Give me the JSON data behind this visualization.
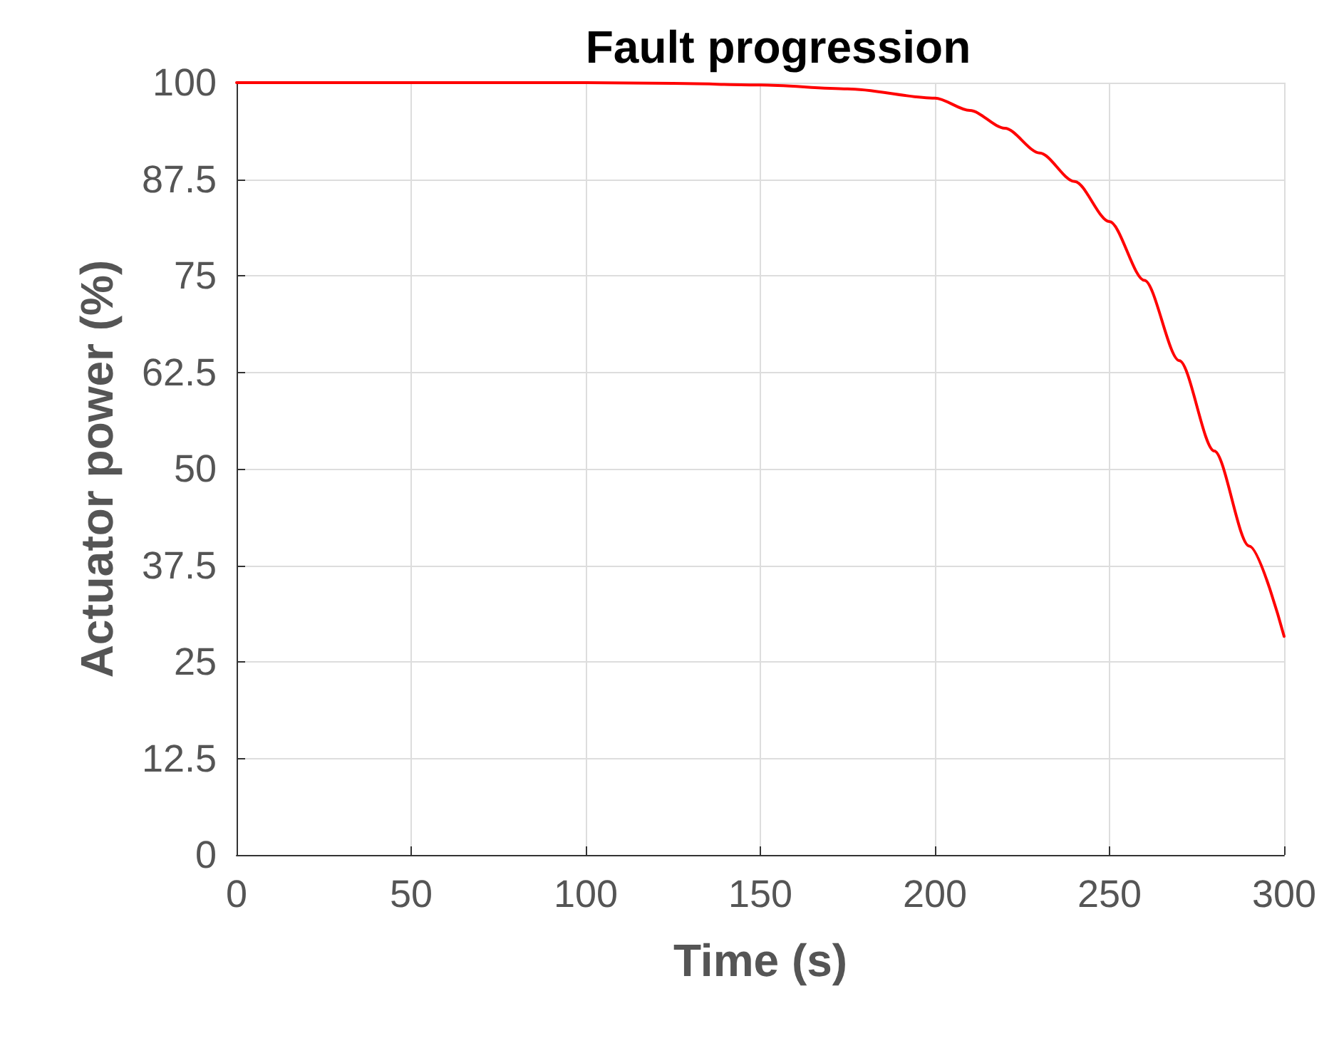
{
  "chart_data": {
    "type": "line",
    "title": "Fault progression",
    "xlabel": "Time (s)",
    "ylabel": "Actuator power (%)",
    "x": [
      0,
      50,
      100,
      125,
      150,
      175,
      200,
      210,
      220,
      230,
      240,
      250,
      260,
      270,
      280,
      290,
      300
    ],
    "series": [
      {
        "color": "#ff0000",
        "values": [
          100,
          100,
          100,
          99.9,
          99.7,
          99.2,
          98,
          96.4,
          94.1,
          90.9,
          87.2,
          82,
          74.4,
          64,
          52.3,
          40,
          28.3
        ]
      }
    ],
    "xlim": [
      0,
      300
    ],
    "xticks": [
      0,
      50,
      100,
      150,
      200,
      250,
      300
    ],
    "ylim": [
      0,
      100
    ],
    "yticks": [
      0,
      12.5,
      25,
      37.5,
      50,
      62.5,
      75,
      87.5,
      100
    ],
    "grid": true,
    "marker": "none",
    "line_style": "solid"
  }
}
